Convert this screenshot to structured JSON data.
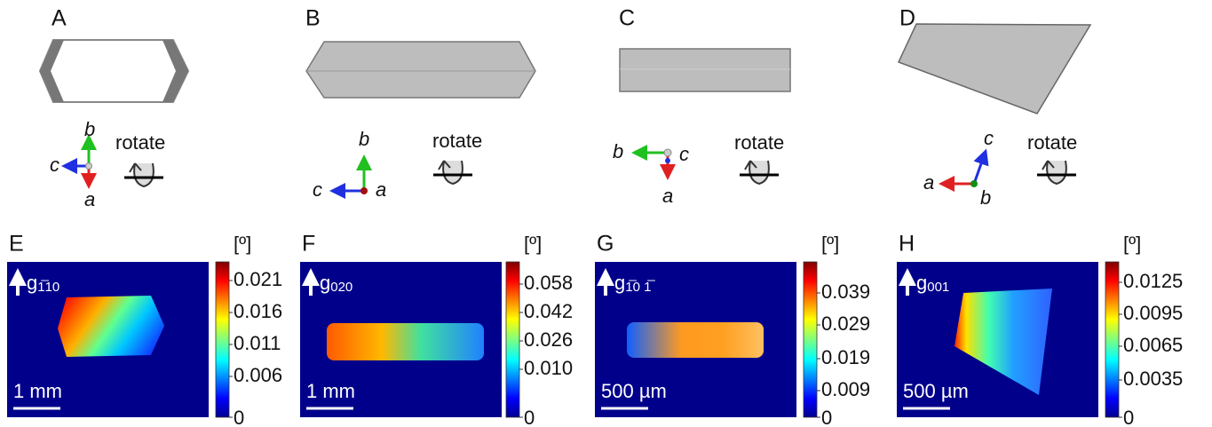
{
  "panels": [
    {
      "label": "A",
      "axes": {
        "a": "a",
        "b": "b",
        "c": "c"
      },
      "rotate": "rotate"
    },
    {
      "label": "B",
      "axes": {
        "a": "a",
        "b": "b",
        "c": "c"
      },
      "rotate": "rotate"
    },
    {
      "label": "C",
      "axes": {
        "a": "a",
        "b": "b",
        "c": "c"
      },
      "rotate": "rotate"
    },
    {
      "label": "D",
      "axes": {
        "a": "a",
        "b": "b",
        "c": "c"
      },
      "rotate": "rotate"
    }
  ],
  "maps": [
    {
      "label": "E",
      "unit": "[º]",
      "vector": "g",
      "index": "1̅10",
      "scale_bar": "1 mm",
      "colorbar_ticks": [
        "0.021",
        "0.016",
        "0.011",
        "0.006",
        "0"
      ]
    },
    {
      "label": "F",
      "unit": "[º]",
      "vector": "g",
      "index": "020",
      "scale_bar": "1 mm",
      "colorbar_ticks": [
        "0.058",
        "0.042",
        "0.026",
        "0.010",
        "0"
      ]
    },
    {
      "label": "G",
      "unit": "[º]",
      "vector": "g",
      "index": "1̅0 1̅",
      "scale_bar": "500 µm",
      "colorbar_ticks": [
        "0.039",
        "0.029",
        "0.019",
        "0.009",
        "0"
      ]
    },
    {
      "label": "H",
      "unit": "[º]",
      "vector": "g",
      "index": "001",
      "scale_bar": "500 µm",
      "colorbar_ticks": [
        "0.0125",
        "0.0095",
        "0.0065",
        "0.0035",
        "0"
      ]
    }
  ]
}
